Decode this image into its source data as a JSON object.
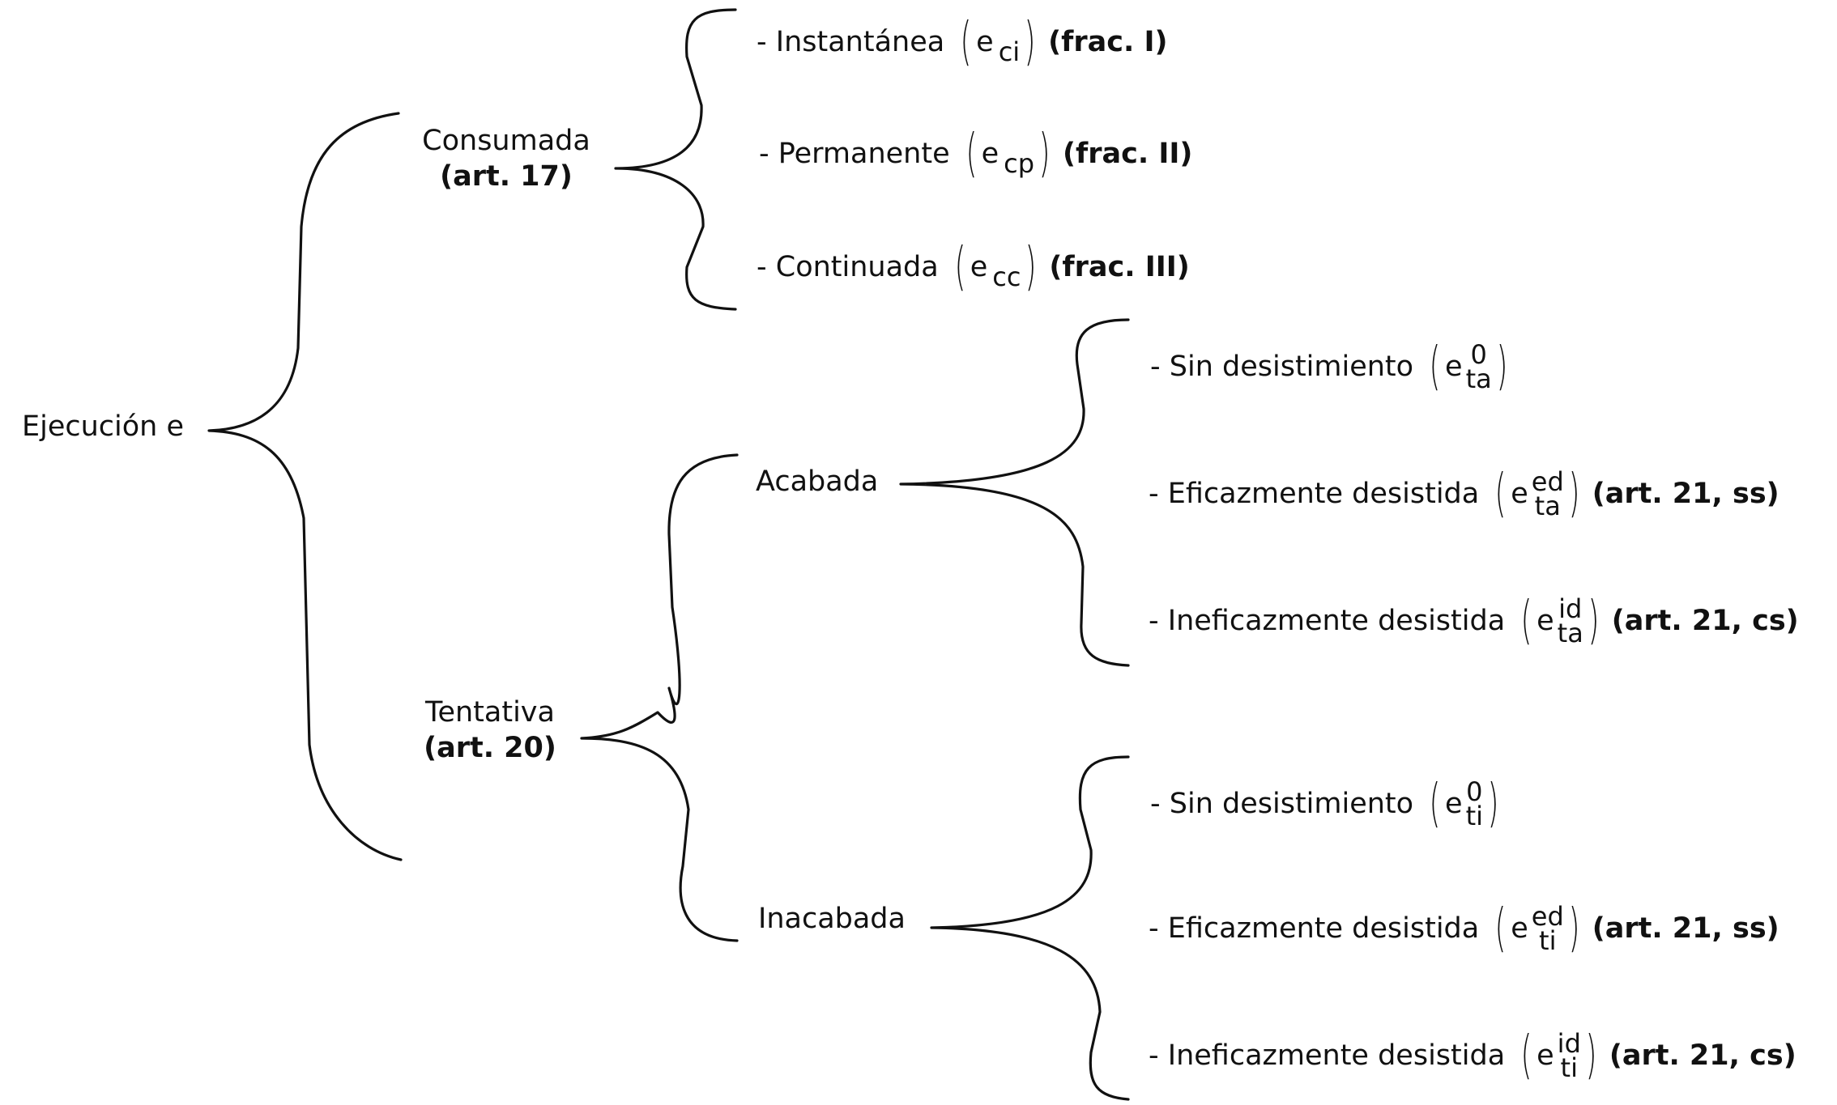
{
  "root": {
    "label": "Ejecución e"
  },
  "consumada": {
    "label": "Consumada",
    "ref": "(art. 17)",
    "items": [
      {
        "label": "- Instantánea",
        "sym": "e",
        "sub": "ci",
        "ref": "(frac. I)"
      },
      {
        "label": "- Permanente",
        "sym": "e",
        "sub": "cp",
        "ref": "(frac. II)"
      },
      {
        "label": "- Continuada",
        "sym": "e",
        "sub": "cc",
        "ref": "(frac. III)"
      }
    ]
  },
  "tentativa": {
    "label": "Tentativa",
    "ref": "(art. 20)",
    "acabada": {
      "label": "Acabada",
      "items": [
        {
          "label": "- Sin desistimiento",
          "sym": "e",
          "sup": "0",
          "sub": "ta",
          "ref": ""
        },
        {
          "label": "- Eficazmente desistida",
          "sym": "e",
          "sup": "ed",
          "sub": "ta",
          "ref": "(art. 21, ss)"
        },
        {
          "label": "- Ineficazmente desistida",
          "sym": "e",
          "sup": "id",
          "sub": "ta",
          "ref": "(art. 21, cs)"
        }
      ]
    },
    "inacabada": {
      "label": "Inacabada",
      "items": [
        {
          "label": "- Sin desistimiento",
          "sym": "e",
          "sup": "0",
          "sub": "ti",
          "ref": ""
        },
        {
          "label": "- Eficazmente desistida",
          "sym": "e",
          "sup": "ed",
          "sub": "ti",
          "ref": "(art. 21, ss)"
        },
        {
          "label": "- Ineficazmente desistida",
          "sym": "e",
          "sup": "id",
          "sub": "ti",
          "ref": "(art. 21, cs)"
        }
      ]
    }
  }
}
